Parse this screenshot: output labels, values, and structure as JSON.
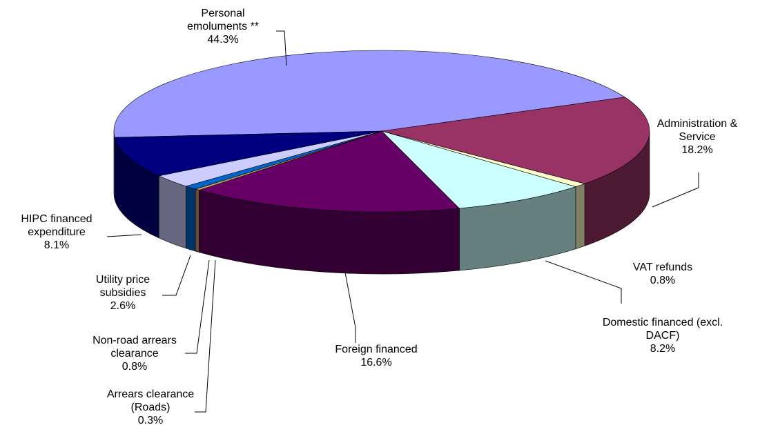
{
  "chart_data": {
    "type": "pie3d",
    "categories": [
      "Personal emoluments **",
      "Administration & Service",
      "VAT refunds",
      "Domestic financed (excl. DACF)",
      "Foreign financed",
      "Arrears clearance (Roads)",
      "Non-road arrears clearance",
      "Utility price subsidies",
      "HIPC financed expenditure"
    ],
    "values": [
      44.3,
      18.2,
      0.8,
      8.2,
      16.6,
      0.3,
      0.8,
      2.6,
      8.1
    ],
    "value_labels": [
      "44.3%",
      "18.2%",
      "0.8%",
      "8.2%",
      "16.6%",
      "0.3%",
      "0.8%",
      "2.6%",
      "8.1%"
    ],
    "colors": [
      "#9999ff",
      "#993366",
      "#ffffcc",
      "#ccffff",
      "#660066",
      "#cc9966",
      "#0066cc",
      "#ccccff",
      "#000080"
    ]
  }
}
